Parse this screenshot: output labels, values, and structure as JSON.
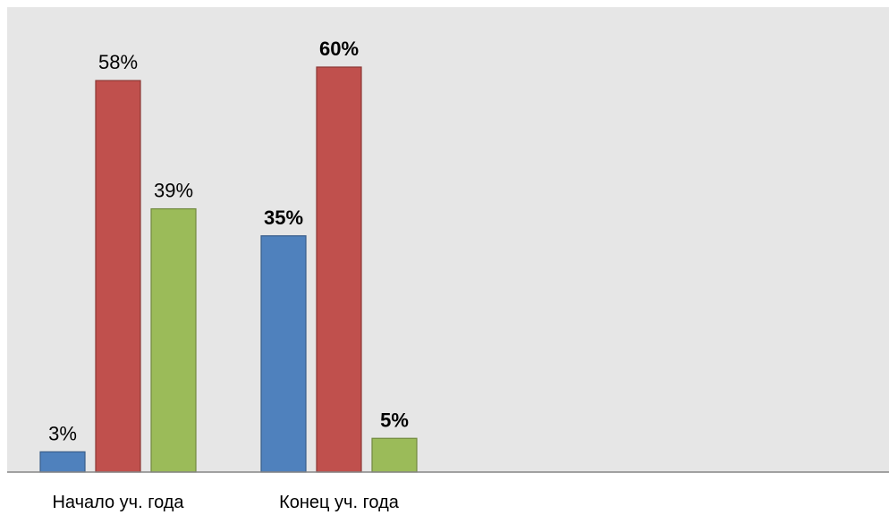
{
  "chart_data": {
    "type": "bar",
    "categories": [
      "Начало уч. года",
      "Конец уч. года"
    ],
    "series": [
      {
        "values": [
          3,
          35
        ],
        "color": "#4F81BD"
      },
      {
        "values": [
          58,
          60
        ],
        "color": "#C0504D"
      },
      {
        "values": [
          39,
          5
        ],
        "color": "#9BBB59"
      }
    ],
    "data_labels": [
      [
        "3%",
        "58%",
        "39%"
      ],
      [
        "35%",
        "60%",
        "5%"
      ]
    ],
    "bold_labels_category_index": 1,
    "ylim": [
      0,
      70
    ],
    "grid": false,
    "legend": "none",
    "plot_background": "#E6E6E6",
    "axis_color": "#868686",
    "bar_border_colors": [
      "#385D8A",
      "#8C3836",
      "#71893F"
    ]
  }
}
